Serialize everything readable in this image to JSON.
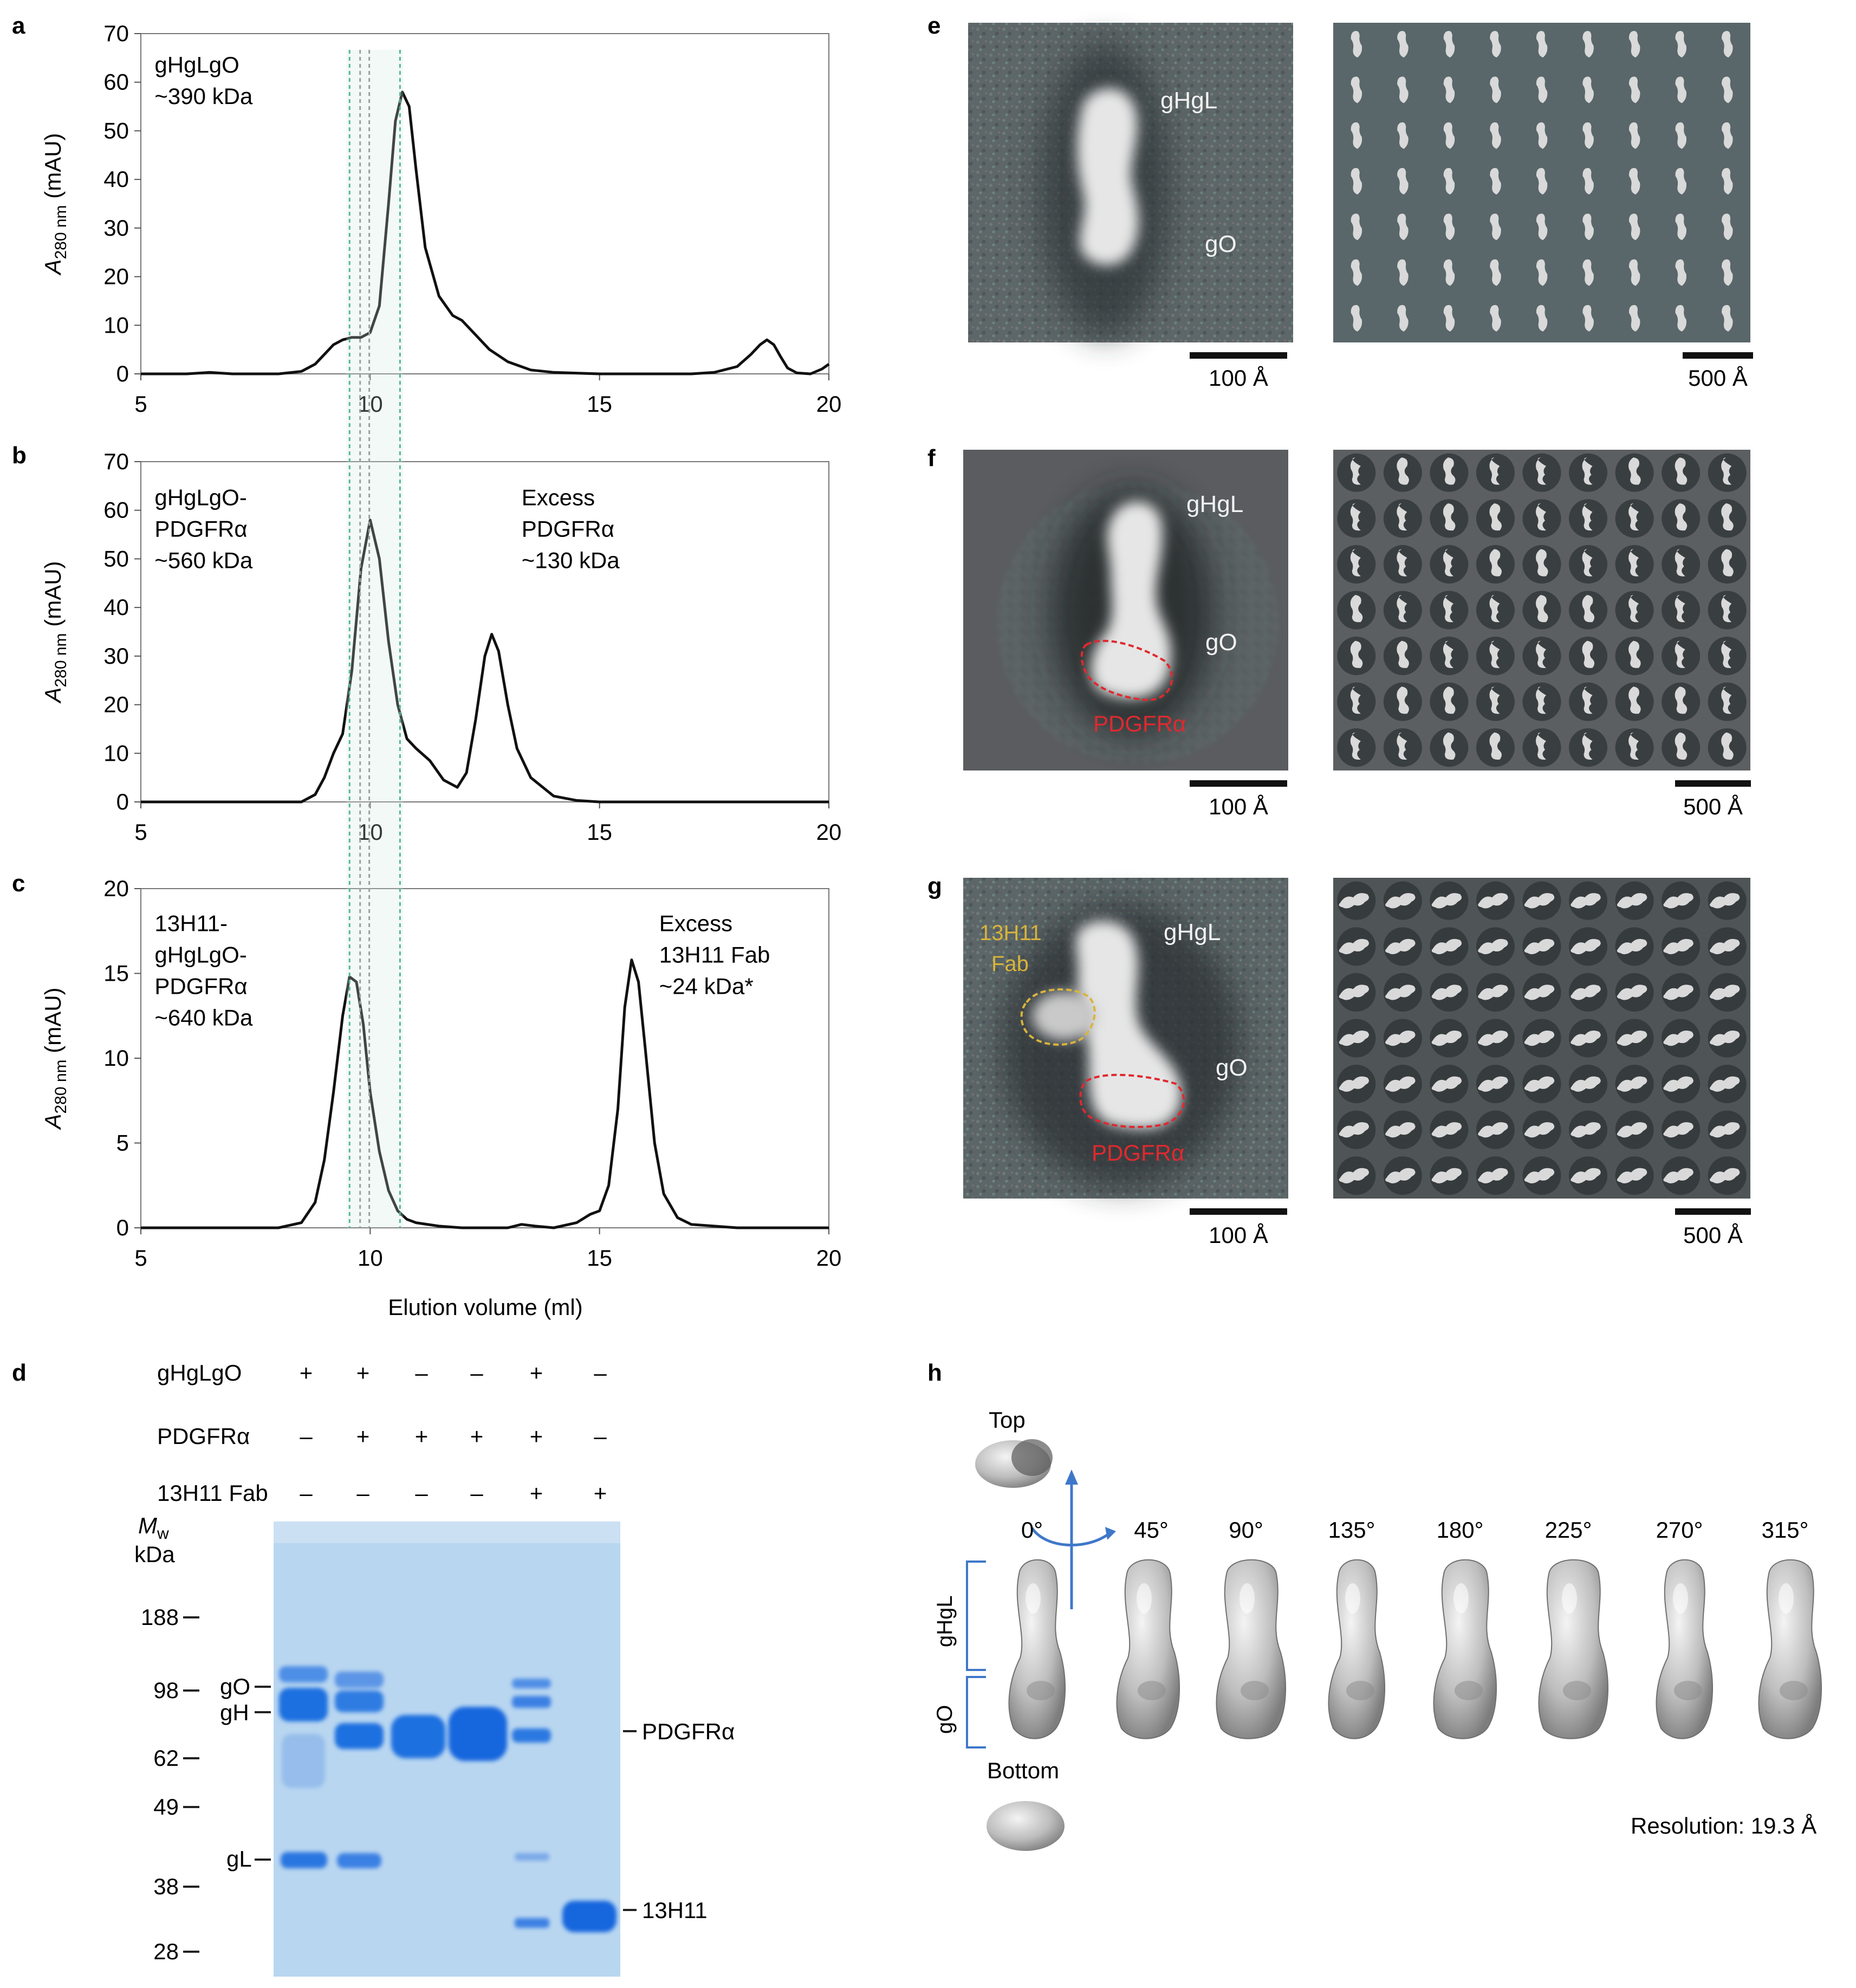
{
  "panel_letters": {
    "a": "a",
    "b": "b",
    "c": "c",
    "d": "d",
    "e": "e",
    "f": "f",
    "g": "g",
    "h": "h"
  },
  "chromatography": {
    "shared_xlabel": "Elution volume (ml)",
    "ylabel_main": "A",
    "ylabel_sub": "280 nm",
    "ylabel_unit": " (mAU)",
    "x_ticks": [
      "5",
      "10",
      "15",
      "20"
    ],
    "guide_lines_ml": [
      9.55,
      9.78,
      9.98,
      10.65
    ],
    "guide_colors": [
      "#2aa77d",
      "#888888",
      "#888888",
      "#2aa77d"
    ]
  },
  "chart_data": [
    {
      "type": "line",
      "panel": "a",
      "xlim": [
        5,
        20
      ],
      "ylim": [
        0,
        70
      ],
      "y_ticks": [
        0,
        10,
        20,
        30,
        40,
        50,
        60,
        70
      ],
      "annotations": [
        {
          "lines": [
            "gHgLgO",
            "~390 kDa"
          ],
          "at_x": 5.3,
          "at_y": 62
        }
      ],
      "x": [
        5,
        6,
        6.5,
        7,
        8,
        8.5,
        8.8,
        9,
        9.2,
        9.4,
        9.6,
        9.8,
        10,
        10.2,
        10.4,
        10.55,
        10.7,
        10.85,
        11,
        11.2,
        11.5,
        11.8,
        12,
        12.3,
        12.6,
        13,
        13.5,
        14,
        15,
        16,
        17,
        17.5,
        18,
        18.3,
        18.5,
        18.65,
        18.8,
        18.95,
        19.1,
        19.3,
        19.6,
        19.85,
        20
      ],
      "y": [
        0,
        0,
        0.3,
        0,
        0,
        0.5,
        2,
        4,
        6,
        7,
        7.5,
        7.5,
        8.5,
        14,
        35,
        52,
        58,
        55,
        42,
        26,
        16,
        12,
        11,
        8,
        5,
        2.5,
        0.8,
        0.3,
        0,
        0,
        0,
        0.3,
        1.5,
        4,
        6,
        7,
        6,
        3.5,
        1.2,
        0.2,
        0,
        1,
        2
      ]
    },
    {
      "type": "line",
      "panel": "b",
      "xlim": [
        5,
        20
      ],
      "ylim": [
        0,
        70
      ],
      "y_ticks": [
        0,
        10,
        20,
        30,
        40,
        50,
        60,
        70
      ],
      "annotations": [
        {
          "lines": [
            "gHgLgO-",
            "PDGFRα",
            "~560 kDa"
          ],
          "at_x": 5.3,
          "at_y": 61
        },
        {
          "lines": [
            "Excess",
            "PDGFRα",
            "~130 kDa"
          ],
          "at_x": 13.3,
          "at_y": 61
        }
      ],
      "x": [
        5,
        7,
        8.5,
        8.8,
        9,
        9.2,
        9.4,
        9.6,
        9.8,
        10,
        10.2,
        10.4,
        10.6,
        10.8,
        11,
        11.3,
        11.6,
        11.9,
        12.1,
        12.3,
        12.5,
        12.65,
        12.8,
        13,
        13.2,
        13.5,
        14,
        14.5,
        15,
        17,
        20
      ],
      "y": [
        0,
        0,
        0,
        1.5,
        5,
        10,
        14,
        27,
        48,
        58,
        50,
        33,
        20,
        13,
        11,
        8.5,
        4.5,
        3,
        6,
        17,
        30,
        34.5,
        31,
        20,
        11,
        5,
        1.2,
        0.3,
        0,
        0,
        0
      ]
    },
    {
      "type": "line",
      "panel": "c",
      "xlim": [
        5,
        20
      ],
      "ylim": [
        0,
        20
      ],
      "y_ticks": [
        0,
        5,
        10,
        15,
        20
      ],
      "annotations": [
        {
          "lines": [
            "13H11-",
            "gHgLgO-",
            "PDGFRα",
            "~640 kDa"
          ],
          "at_x": 5.3,
          "at_y": 17.5
        },
        {
          "lines": [
            "Excess",
            "13H11 Fab",
            "~24 kDa*"
          ],
          "at_x": 16.3,
          "at_y": 17.5
        }
      ],
      "x": [
        5,
        8,
        8.5,
        8.8,
        9,
        9.2,
        9.4,
        9.55,
        9.7,
        9.85,
        10,
        10.2,
        10.4,
        10.6,
        10.8,
        11,
        11.5,
        12,
        13,
        13.3,
        13.6,
        14,
        14.5,
        14.8,
        15,
        15.2,
        15.4,
        15.55,
        15.7,
        15.85,
        16,
        16.2,
        16.4,
        16.7,
        17,
        18,
        20
      ],
      "y": [
        0,
        0,
        0.3,
        1.5,
        4,
        8,
        12.5,
        14.8,
        14.5,
        12,
        8,
        4.5,
        2.2,
        1,
        0.5,
        0.3,
        0.1,
        0,
        0,
        0.2,
        0.1,
        0,
        0.3,
        0.8,
        1,
        2.5,
        7,
        13,
        15.8,
        14.5,
        10.5,
        5,
        2,
        0.6,
        0.2,
        0,
        0
      ]
    }
  ],
  "gel": {
    "rows": [
      {
        "label": "gHgLgO",
        "signs": [
          "+",
          "+",
          "–",
          "–",
          "+",
          "–"
        ]
      },
      {
        "label": "PDGFRα",
        "signs": [
          "–",
          "+",
          "+",
          "+",
          "+",
          "–"
        ]
      },
      {
        "label": "13H11 Fab",
        "signs": [
          "–",
          "–",
          "–",
          "–",
          "+",
          "+"
        ]
      }
    ],
    "mw_title": "M",
    "mw_sub": "w",
    "mw_unit": "kDa",
    "mw_markers": [
      "188",
      "98",
      "62",
      "49",
      "38",
      "28"
    ],
    "left_bands": [
      "gO",
      "gH",
      "gL"
    ],
    "right_bands": [
      "PDGFRα",
      "13H11"
    ]
  },
  "em_panels": [
    {
      "panel": "e",
      "labels": {
        "top": "gHgL",
        "mid": "gO"
      },
      "scale_left": "100 Å",
      "scale_right": "500 Å"
    },
    {
      "panel": "f",
      "labels": {
        "top": "gHgL",
        "mid": "gO",
        "red": "PDGFRα"
      },
      "scale_left": "100 Å",
      "scale_right": "500 Å"
    },
    {
      "panel": "g",
      "labels": {
        "top": "gHgL",
        "mid": "gO",
        "red": "PDGFRα",
        "fab1": "13H11",
        "fab2": "Fab"
      },
      "scale_left": "100 Å",
      "scale_right": "500 Å"
    }
  ],
  "model": {
    "top_label": "Top",
    "bottom_label": "Bottom",
    "angles": [
      "0°",
      "45°",
      "90°",
      "135°",
      "180°",
      "225°",
      "270°",
      "315°"
    ],
    "bracket_top": "gHgL",
    "bracket_bottom": "gO",
    "resolution": "Resolution: 19.3 Å"
  },
  "colors": {
    "curve": "#111111",
    "guide_green": "#2aa77d",
    "gel_bg": "#b9d6f0",
    "band_blue": "#1f6fe0",
    "em_bg": "#5a6466",
    "red_outline": "#e0292f",
    "fab_outline": "#d9b43a",
    "arrow_blue": "#3f78c9"
  }
}
